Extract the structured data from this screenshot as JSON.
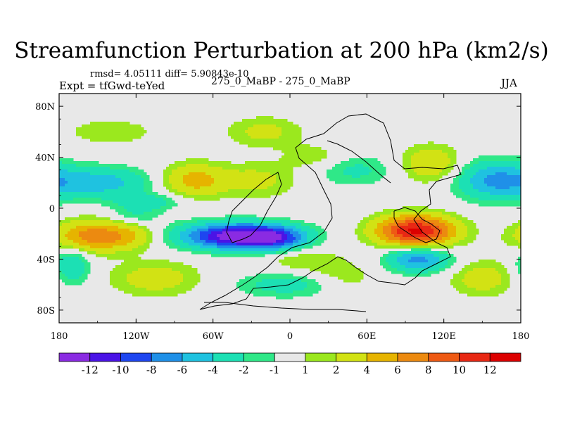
{
  "chart_data": {
    "type": "heatmap",
    "title": "Streamfunction Perturbation at 200 hPa (km2/s)",
    "stats_text": "rmsd= 4.05111 diff= 5.90843e-10",
    "experiment_text": "Expt = tfGwd-teYed",
    "difference_text": "275_0_MaBP - 275_0_MaBP",
    "season": "JJA",
    "x_ticks": [
      "180",
      "120W",
      "60W",
      "0",
      "60E",
      "120E",
      "180"
    ],
    "x_tick_values": [
      -180,
      -120,
      -60,
      0,
      60,
      120,
      180
    ],
    "y_ticks": [
      "80N",
      "40N",
      "0",
      "40S",
      "80S"
    ],
    "y_tick_values": [
      80,
      40,
      0,
      -40,
      -80
    ],
    "xlim": [
      -180,
      180
    ],
    "ylim": [
      -90,
      90
    ],
    "colorbar_labels": [
      "-12",
      "-10",
      "-8",
      "-6",
      "-4",
      "-2",
      "-1",
      "1",
      "2",
      "4",
      "6",
      "8",
      "10",
      "12"
    ],
    "levels": [
      -12,
      -10,
      -8,
      -6,
      -4,
      -2,
      -1,
      1,
      2,
      4,
      6,
      8,
      10,
      12
    ],
    "colors": [
      "#8a2be2",
      "#4a14e6",
      "#1e46f0",
      "#1f90e8",
      "#1fc2e0",
      "#1ce0b4",
      "#2fe888",
      "#e8e8e8",
      "#9be81e",
      "#d2e214",
      "#e6b400",
      "#ec8a10",
      "#ee5a14",
      "#e82814",
      "#dc0000"
    ],
    "features": [
      {
        "lon": -40,
        "lat": -22,
        "rx": 42,
        "ry": 10,
        "amp": -14
      },
      {
        "lon": -10,
        "lat": -24,
        "rx": 22,
        "ry": 9,
        "amp": -5
      },
      {
        "lon": 98,
        "lat": -18,
        "rx": 30,
        "ry": 12,
        "amp": 12.5
      },
      {
        "lon": -155,
        "lat": -22,
        "rx": 28,
        "ry": 12,
        "amp": 7
      },
      {
        "lon": -125,
        "lat": -22,
        "rx": 22,
        "ry": 10,
        "amp": 3
      },
      {
        "lon": 160,
        "lat": 22,
        "rx": 30,
        "ry": 15,
        "amp": -6
      },
      {
        "lon": -148,
        "lat": 20,
        "rx": 40,
        "ry": 12,
        "amp": -5
      },
      {
        "lon": -110,
        "lat": 5,
        "rx": 25,
        "ry": 6,
        "amp": -3
      },
      {
        "lon": -75,
        "lat": 22,
        "rx": 25,
        "ry": 13,
        "amp": 5
      },
      {
        "lon": -25,
        "lat": 22,
        "rx": 30,
        "ry": 14,
        "amp": 2.5
      },
      {
        "lon": 110,
        "lat": 35,
        "rx": 22,
        "ry": 14,
        "amp": 4
      },
      {
        "lon": 100,
        "lat": -40,
        "rx": 24,
        "ry": 10,
        "amp": -7
      },
      {
        "lon": -105,
        "lat": -55,
        "rx": 35,
        "ry": 14,
        "amp": 3
      },
      {
        "lon": -170,
        "lat": -45,
        "rx": 14,
        "ry": 15,
        "amp": -4
      },
      {
        "lon": 0,
        "lat": -60,
        "rx": 42,
        "ry": 10,
        "amp": -3
      },
      {
        "lon": 40,
        "lat": -55,
        "rx": 28,
        "ry": 12,
        "amp": 2
      },
      {
        "lon": 150,
        "lat": -55,
        "rx": 25,
        "ry": 14,
        "amp": 3
      },
      {
        "lon": 50,
        "lat": 30,
        "rx": 30,
        "ry": 12,
        "amp": -2.5
      },
      {
        "lon": -140,
        "lat": 60,
        "rx": 40,
        "ry": 12,
        "amp": 1.6
      },
      {
        "lon": -20,
        "lat": 60,
        "rx": 30,
        "ry": 12,
        "amp": 2.5
      },
      {
        "lon": 20,
        "lat": 40,
        "rx": 25,
        "ry": 10,
        "amp": 1.8
      },
      {
        "lon": -120,
        "lat": -5,
        "rx": 20,
        "ry": 8,
        "amp": -2
      },
      {
        "lon": 10,
        "lat": -40,
        "rx": 30,
        "ry": 10,
        "amp": 2
      }
    ]
  }
}
